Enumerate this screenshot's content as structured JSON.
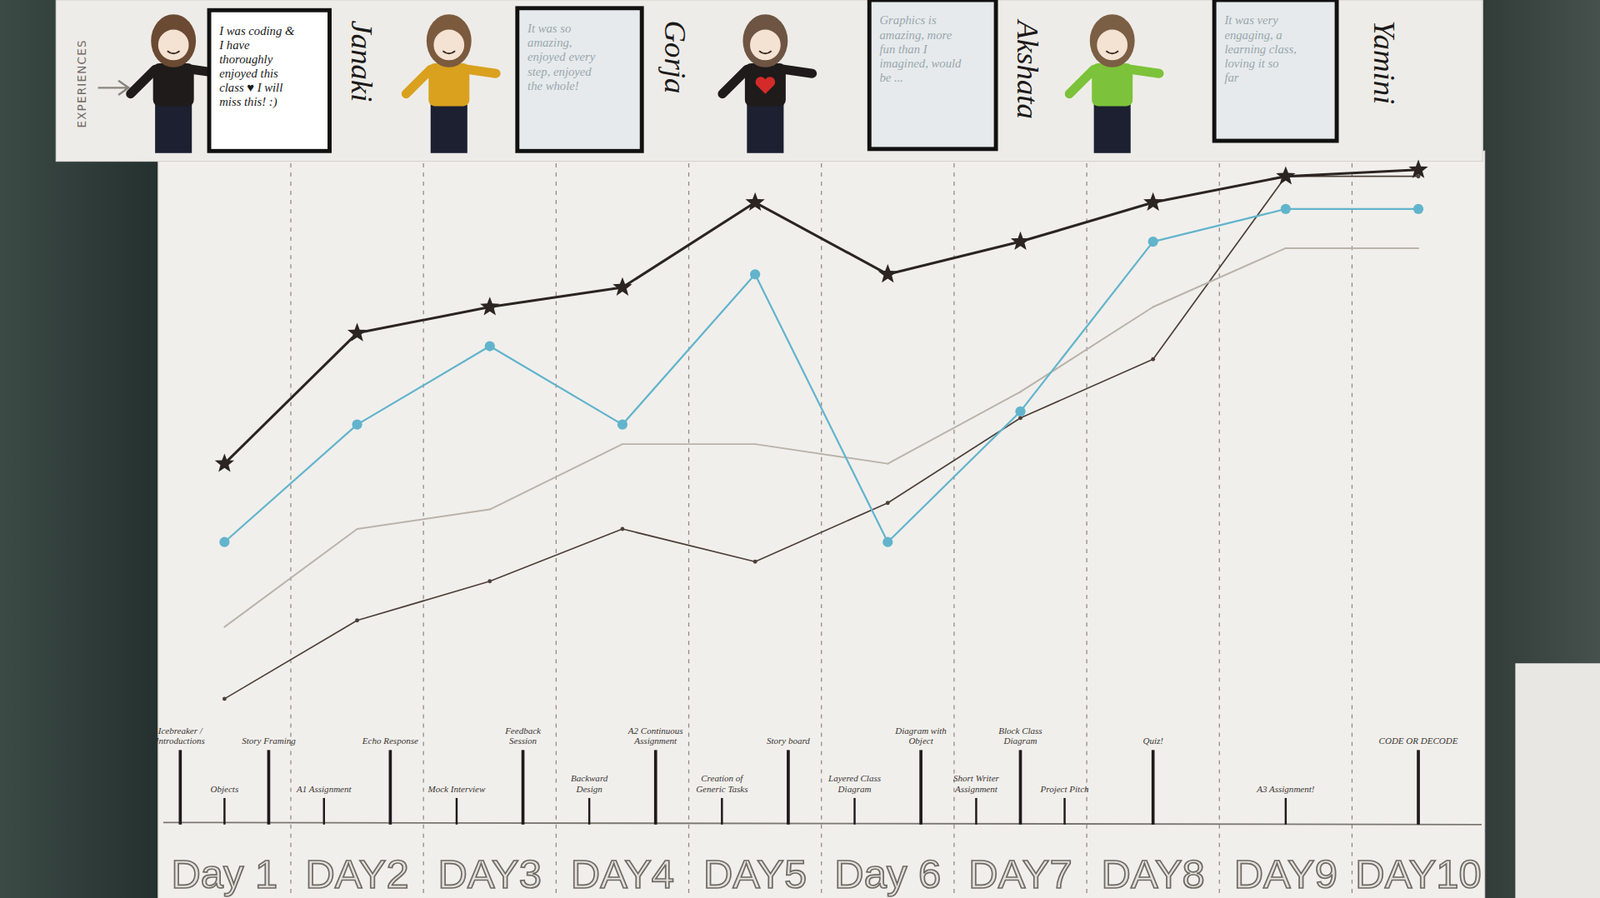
{
  "chart_data": {
    "type": "line",
    "experiences_label": "EXPERIENCES",
    "categories": [
      "Day 1",
      "DAY2",
      "DAY3",
      "DAY4",
      "DAY5",
      "Day 6",
      "DAY7",
      "DAY8",
      "DAY9",
      "DAY10"
    ],
    "ylim": [
      0,
      100
    ],
    "tick_labels": "x",
    "grid": true,
    "series": [
      {
        "name": "Janaki",
        "color": "#2b2420",
        "marker": "star",
        "line_style": "solid",
        "experience": "I was coding & I have thoroughly enjoyed this class ♥ I will miss this! :)",
        "values": [
          54,
          74,
          78,
          81,
          94,
          83,
          88,
          94,
          98,
          99
        ]
      },
      {
        "name": "Gorja",
        "color": "#62b4cc",
        "marker": "circle",
        "line_style": "solid",
        "experience": "It was so amazing, enjoyed every step, enjoyed the whole!",
        "values": [
          42,
          60,
          72,
          60,
          83,
          42,
          62,
          88,
          93,
          93
        ]
      },
      {
        "name": "Akshata",
        "color": "#b9b3ab",
        "marker": "none",
        "line_style": "solid",
        "experience": "Graphics is amazing, more fun than I imagined, would be ...",
        "values": [
          29,
          44,
          47,
          57,
          57,
          54,
          65,
          78,
          87,
          87
        ]
      },
      {
        "name": "Yamini",
        "color": "#4d4039",
        "marker": "dot",
        "line_style": "solid",
        "experience": "It was very engaging, a learning class, loving it so far",
        "values": [
          18,
          30,
          36,
          44,
          39,
          48,
          61,
          70,
          98,
          98
        ]
      }
    ],
    "events": [
      [
        "Icebreaker / Introductions",
        "Objects",
        "Story Framing"
      ],
      [
        "A1 Assignment",
        "Echo Response"
      ],
      [
        "Mock Interview",
        "Feedback Session"
      ],
      [
        "Backward Design",
        "A2 Continuous Assignment"
      ],
      [
        "Creation of Generic Tasks",
        "Story board"
      ],
      [
        "Layered Class Diagram",
        "Diagram with Object"
      ],
      [
        "Short Writer Assignment",
        "Block Class Diagram",
        "Project Pitch"
      ],
      [
        "Quiz!"
      ],
      [
        "A3 Assignment!"
      ],
      [
        "CODE OR DECODE"
      ]
    ]
  }
}
